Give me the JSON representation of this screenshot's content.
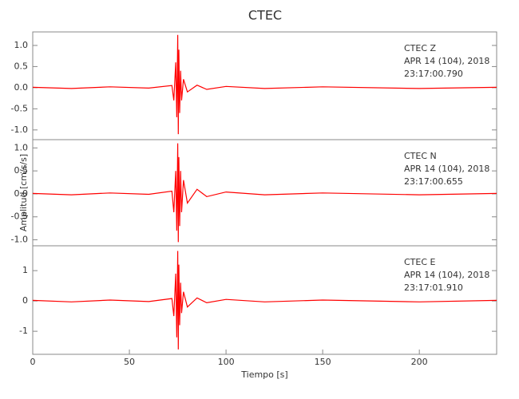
{
  "chart_data": [
    {
      "type": "line",
      "title": "CTEC",
      "annotations": [
        "CTEC   Z",
        "APR 14 (104), 2018",
        "23:17:00.790"
      ],
      "xlim": [
        0,
        240
      ],
      "ylim": [
        -1.23,
        1.32
      ],
      "yticks": [
        {
          "value": -1.0,
          "label": "-1.0"
        },
        {
          "value": -0.5,
          "label": "-0.5"
        },
        {
          "value": 0,
          "label": "0.0"
        },
        {
          "value": 0.5,
          "label": "0.5"
        },
        {
          "value": 1.0,
          "label": "1.0"
        }
      ],
      "x": [
        0,
        20,
        40,
        60,
        72,
        73,
        74,
        74.5,
        75,
        75.3,
        75.6,
        76,
        76.5,
        77,
        78,
        80,
        85,
        90,
        100,
        120,
        150,
        200,
        240
      ],
      "series": [
        {
          "color": "#ff0000",
          "values": [
            0.01,
            -0.02,
            0.02,
            -0.01,
            0.05,
            -0.3,
            0.6,
            -0.7,
            1.25,
            -1.1,
            0.9,
            -0.6,
            0.4,
            -0.3,
            0.2,
            -0.1,
            0.06,
            -0.04,
            0.03,
            -0.02,
            0.02,
            -0.02,
            0.01
          ]
        }
      ]
    },
    {
      "type": "line",
      "annotations": [
        "CTEC   N",
        "APR 14 (104), 2018",
        "23:17:00.655"
      ],
      "ylabel": "Amplitud [cm/s/s]",
      "xlim": [
        0,
        240
      ],
      "ylim": [
        -1.13,
        1.18
      ],
      "yticks": [
        {
          "value": -1.0,
          "label": "-1.0"
        },
        {
          "value": -0.5,
          "label": "-0.5"
        },
        {
          "value": 0,
          "label": "0.0"
        },
        {
          "value": 0.5,
          "label": "0.5"
        },
        {
          "value": 1.0,
          "label": "1.0"
        }
      ],
      "x": [
        0,
        20,
        40,
        60,
        72,
        73,
        74,
        74.5,
        75,
        75.3,
        75.6,
        76,
        76.5,
        77,
        78,
        80,
        85,
        90,
        100,
        120,
        150,
        200,
        240
      ],
      "series": [
        {
          "color": "#ff0000",
          "values": [
            0.01,
            -0.02,
            0.02,
            -0.01,
            0.06,
            -0.4,
            0.5,
            -0.8,
            1.1,
            -1.05,
            0.8,
            -0.7,
            0.5,
            -0.4,
            0.3,
            -0.2,
            0.1,
            -0.06,
            0.04,
            -0.02,
            0.02,
            -0.02,
            0.01
          ]
        }
      ]
    },
    {
      "type": "line",
      "annotations": [
        "CTEC   E",
        "APR 14 (104), 2018",
        "23:17:01.910"
      ],
      "xlabel": "Tiempo [s]",
      "xlim": [
        0,
        240
      ],
      "ylim": [
        -1.76,
        1.82
      ],
      "xticks": [
        0,
        50,
        100,
        150,
        200
      ],
      "yticks": [
        -1,
        0,
        1
      ],
      "x": [
        0,
        20,
        40,
        60,
        72,
        73,
        74,
        74.5,
        75,
        75.3,
        75.6,
        76,
        76.5,
        77,
        78,
        80,
        85,
        90,
        100,
        120,
        150,
        200,
        240
      ],
      "series": [
        {
          "color": "#ff0000",
          "values": [
            0.02,
            -0.03,
            0.03,
            -0.02,
            0.08,
            -0.5,
            0.9,
            -1.2,
            1.65,
            -1.6,
            1.2,
            -0.8,
            0.6,
            -0.4,
            0.3,
            -0.2,
            0.1,
            -0.06,
            0.05,
            -0.03,
            0.03,
            -0.03,
            0.02
          ]
        }
      ]
    }
  ]
}
